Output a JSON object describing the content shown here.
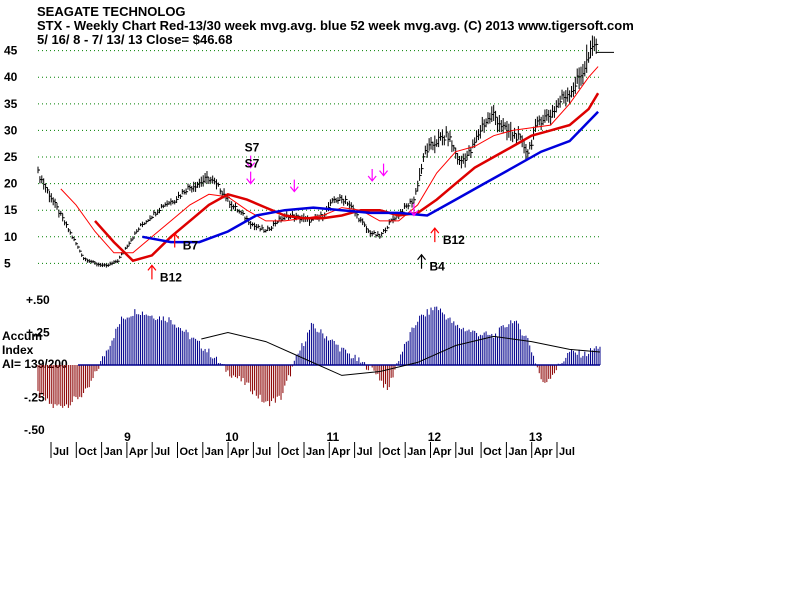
{
  "header": {
    "line1": "SEAGATE TECHNOLOG",
    "line2": "STX  - Weekly Chart  Red-13/30 week mvg.avg.  blue 52 week mvg.avg.  (C) 2013 www.tigersoft.com",
    "line3": " 5/ 16/ 8 -  7/ 13/ 13    Close= $46.68"
  },
  "colors": {
    "price": "#000000",
    "ma13": "#ff0000",
    "ma30": "#dd0000",
    "ma52": "#0000dd",
    "grid": "#008000",
    "accum_pos": "#00008b",
    "accum_neg": "#8b0000",
    "buy_arrow": "#ff0000",
    "sell_arrow": "#ff00ff"
  },
  "chart_data": {
    "type": "line",
    "title": "STX - Weekly Chart",
    "price_axis": {
      "range": [
        0,
        47
      ],
      "ticks": [
        5,
        10,
        15,
        20,
        25,
        30,
        35,
        40,
        45
      ]
    },
    "accum_axis": {
      "label_lines": [
        "Accum",
        "Index",
        "AI= 139/200"
      ],
      "ticks": [
        {
          "value": 0.5,
          "label": "+.50"
        },
        {
          "value": 0.25,
          "label": "+.25"
        },
        {
          "value": -0.25,
          "label": "-.25"
        },
        {
          "value": -0.5,
          "label": "-.50"
        }
      ],
      "range": [
        -0.5,
        0.5
      ]
    },
    "x_axis": {
      "months": [
        "Jul",
        "Oct",
        "Jan",
        "Apr",
        "Jul",
        "Oct",
        "Jan",
        "Apr",
        "Jul",
        "Oct",
        "Jan",
        "Apr",
        "Jul",
        "Oct",
        "Jan",
        "Apr",
        "Jul",
        "Oct",
        "Jan",
        "Apr",
        "Jul"
      ],
      "years": [
        {
          "label": "9",
          "after_month_index": 2
        },
        {
          "label": "10",
          "after_month_index": 6
        },
        {
          "label": "11",
          "after_month_index": 10
        },
        {
          "label": "12",
          "after_month_index": 14
        },
        {
          "label": "13",
          "after_month_index": 18
        }
      ]
    },
    "close": 46.68,
    "price_keypoints": [
      [
        0,
        22
      ],
      [
        6,
        18
      ],
      [
        12,
        14
      ],
      [
        18,
        10
      ],
      [
        24,
        6
      ],
      [
        30,
        5
      ],
      [
        36,
        4.5
      ],
      [
        42,
        5.5
      ],
      [
        48,
        9
      ],
      [
        54,
        12
      ],
      [
        60,
        14
      ],
      [
        66,
        16
      ],
      [
        72,
        17
      ],
      [
        78,
        19
      ],
      [
        84,
        20
      ],
      [
        90,
        21
      ],
      [
        96,
        19
      ],
      [
        102,
        16
      ],
      [
        108,
        14
      ],
      [
        114,
        12
      ],
      [
        120,
        11
      ],
      [
        126,
        13
      ],
      [
        132,
        14
      ],
      [
        138,
        13.5
      ],
      [
        144,
        13
      ],
      [
        150,
        14
      ],
      [
        156,
        17
      ],
      [
        162,
        17
      ],
      [
        168,
        14
      ],
      [
        174,
        11
      ],
      [
        180,
        10
      ],
      [
        186,
        13
      ],
      [
        192,
        15
      ],
      [
        198,
        17
      ],
      [
        204,
        26
      ],
      [
        210,
        28
      ],
      [
        216,
        29
      ],
      [
        222,
        24
      ],
      [
        228,
        26
      ],
      [
        234,
        31
      ],
      [
        240,
        33
      ],
      [
        246,
        30
      ],
      [
        252,
        29
      ],
      [
        258,
        26
      ],
      [
        264,
        32
      ],
      [
        270,
        33
      ],
      [
        276,
        36
      ],
      [
        282,
        38
      ],
      [
        288,
        42
      ],
      [
        294,
        46.7
      ]
    ],
    "ma13_keypoints": [
      [
        12,
        19
      ],
      [
        20,
        16
      ],
      [
        30,
        11
      ],
      [
        40,
        7
      ],
      [
        50,
        7
      ],
      [
        60,
        10
      ],
      [
        70,
        13
      ],
      [
        80,
        16
      ],
      [
        90,
        18
      ],
      [
        100,
        17.5
      ],
      [
        110,
        15
      ],
      [
        120,
        13
      ],
      [
        130,
        13
      ],
      [
        140,
        13.5
      ],
      [
        150,
        14
      ],
      [
        160,
        15.5
      ],
      [
        170,
        15
      ],
      [
        180,
        13
      ],
      [
        190,
        13
      ],
      [
        200,
        16
      ],
      [
        210,
        22
      ],
      [
        220,
        26
      ],
      [
        230,
        27
      ],
      [
        240,
        29
      ],
      [
        250,
        30
      ],
      [
        260,
        30.5
      ],
      [
        270,
        31
      ],
      [
        280,
        35
      ],
      [
        290,
        40
      ],
      [
        295,
        42
      ]
    ],
    "ma30_keypoints": [
      [
        30,
        13
      ],
      [
        40,
        9
      ],
      [
        50,
        5.5
      ],
      [
        60,
        6.5
      ],
      [
        70,
        10
      ],
      [
        80,
        13
      ],
      [
        90,
        16
      ],
      [
        100,
        18
      ],
      [
        110,
        17
      ],
      [
        120,
        15.5
      ],
      [
        130,
        14
      ],
      [
        140,
        13.5
      ],
      [
        150,
        13.5
      ],
      [
        160,
        14
      ],
      [
        170,
        15
      ],
      [
        180,
        15
      ],
      [
        190,
        14
      ],
      [
        200,
        14.5
      ],
      [
        210,
        17
      ],
      [
        220,
        20
      ],
      [
        230,
        23
      ],
      [
        240,
        25
      ],
      [
        250,
        27
      ],
      [
        260,
        29
      ],
      [
        270,
        30
      ],
      [
        280,
        31
      ],
      [
        290,
        34
      ],
      [
        295,
        37
      ]
    ],
    "ma52_keypoints": [
      [
        55,
        10
      ],
      [
        70,
        9
      ],
      [
        85,
        9
      ],
      [
        100,
        11
      ],
      [
        115,
        14
      ],
      [
        130,
        15
      ],
      [
        145,
        15.5
      ],
      [
        160,
        15
      ],
      [
        175,
        14.5
      ],
      [
        190,
        14.5
      ],
      [
        205,
        14
      ],
      [
        220,
        17
      ],
      [
        235,
        20
      ],
      [
        250,
        23
      ],
      [
        265,
        26
      ],
      [
        280,
        28
      ],
      [
        295,
        33.5
      ]
    ],
    "accum_keypoints": [
      [
        0,
        -0.22
      ],
      [
        8,
        -0.32
      ],
      [
        16,
        -0.3
      ],
      [
        26,
        -0.2
      ],
      [
        34,
        0.05
      ],
      [
        44,
        0.35
      ],
      [
        52,
        0.42
      ],
      [
        60,
        0.38
      ],
      [
        70,
        0.35
      ],
      [
        80,
        0.22
      ],
      [
        90,
        0.1
      ],
      [
        100,
        -0.05
      ],
      [
        110,
        -0.15
      ],
      [
        120,
        -0.3
      ],
      [
        128,
        -0.25
      ],
      [
        136,
        0.05
      ],
      [
        144,
        0.3
      ],
      [
        152,
        0.22
      ],
      [
        160,
        0.12
      ],
      [
        170,
        0.02
      ],
      [
        178,
        -0.05
      ],
      [
        184,
        -0.2
      ],
      [
        190,
        0.05
      ],
      [
        200,
        0.35
      ],
      [
        210,
        0.45
      ],
      [
        220,
        0.3
      ],
      [
        230,
        0.25
      ],
      [
        240,
        0.22
      ],
      [
        250,
        0.35
      ],
      [
        258,
        0.2
      ],
      [
        266,
        -0.15
      ],
      [
        272,
        -0.05
      ],
      [
        280,
        0.1
      ],
      [
        288,
        0.08
      ],
      [
        296,
        0.15
      ]
    ],
    "accum_ma_keypoints": [
      [
        86,
        0.2
      ],
      [
        100,
        0.25
      ],
      [
        120,
        0.18
      ],
      [
        140,
        0.05
      ],
      [
        160,
        -0.08
      ],
      [
        180,
        -0.05
      ],
      [
        200,
        0.02
      ],
      [
        220,
        0.15
      ],
      [
        240,
        0.22
      ],
      [
        260,
        0.18
      ],
      [
        280,
        0.12
      ],
      [
        296,
        0.1
      ]
    ],
    "signals": [
      {
        "label": "B12",
        "type": "buy",
        "week": 60,
        "value": 2.0
      },
      {
        "label": "B7",
        "type": "buy",
        "week": 72,
        "value": 8.0
      },
      {
        "label": "S7",
        "type": "sell",
        "week": 112,
        "value": 23.0
      },
      {
        "label": "S7",
        "type": "sell",
        "week": 112,
        "value": 20.0
      },
      {
        "label": "",
        "type": "sell",
        "week": 135,
        "value": 18.5
      },
      {
        "label": "",
        "type": "sell",
        "week": 176,
        "value": 20.5
      },
      {
        "label": "",
        "type": "sell",
        "week": 182,
        "value": 21.5
      },
      {
        "label": "",
        "type": "sell",
        "week": 198,
        "value": 14.0
      },
      {
        "label": "B4",
        "type": "buy",
        "week": 202,
        "value": 4.0
      },
      {
        "label": "B12",
        "type": "buy",
        "week": 209,
        "value": 9.0
      }
    ]
  }
}
